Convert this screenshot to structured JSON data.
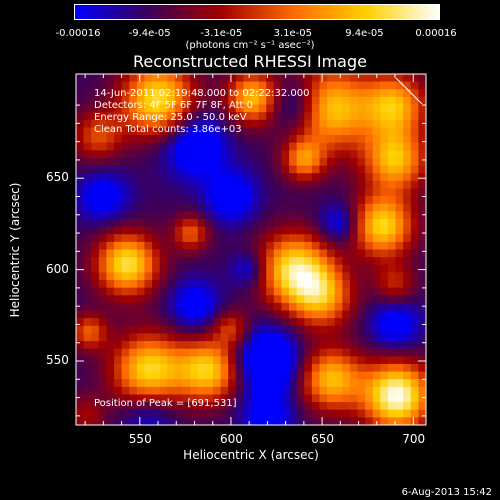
{
  "colorbar": {
    "ticks": [
      "-0.00016",
      "-9.4e-05",
      "-3.1e-05",
      "3.1e-05",
      "9.4e-05",
      "0.00016"
    ],
    "units": "(photons cm⁻² s⁻¹ asec⁻²)"
  },
  "chart_data": {
    "type": "heatmap",
    "title": "Reconstructed RHESSI Image",
    "xlabel": "Heliocentric X (arcsec)",
    "ylabel": "Heliocentric Y (arcsec)",
    "xlim": [
      515,
      707
    ],
    "ylim": [
      515,
      707
    ],
    "x_ticks": [
      550,
      600,
      650,
      700
    ],
    "y_ticks": [
      550,
      600,
      650
    ],
    "annotations": [
      "14-Jun-2011 02:19:48.000 to 02:22:32.000",
      "Detectors: 4F 5F 6F 7F 8F, Att 0",
      "Energy Range: 25.0 - 50.0 keV",
      "Clean    Total counts: 3.86e+03"
    ],
    "peak_text": "Position of Peak = [691,531]",
    "peak": [
      691,
      531
    ],
    "colormap": [
      "#0000ff",
      "#3a005a",
      "#a00000",
      "#ff6a00",
      "#ffd000",
      "#ffffff"
    ],
    "blobs": [
      {
        "x": 560,
        "y": 693,
        "amp": 1.0,
        "s": 14
      },
      {
        "x": 612,
        "y": 694,
        "amp": 0.85,
        "s": 10
      },
      {
        "x": 655,
        "y": 688,
        "amp": 0.9,
        "s": 16
      },
      {
        "x": 690,
        "y": 690,
        "amp": 0.8,
        "s": 12
      },
      {
        "x": 690,
        "y": 660,
        "amp": 0.85,
        "s": 12
      },
      {
        "x": 640,
        "y": 660,
        "amp": 0.65,
        "s": 8
      },
      {
        "x": 527,
        "y": 673,
        "amp": 0.5,
        "s": 10
      },
      {
        "x": 683,
        "y": 624,
        "amp": 0.95,
        "s": 12
      },
      {
        "x": 543,
        "y": 603,
        "amp": 1.0,
        "s": 12
      },
      {
        "x": 578,
        "y": 620,
        "amp": 0.55,
        "s": 7
      },
      {
        "x": 635,
        "y": 600,
        "amp": 1.0,
        "s": 14
      },
      {
        "x": 650,
        "y": 585,
        "amp": 0.7,
        "s": 12
      },
      {
        "x": 690,
        "y": 592,
        "amp": 0.4,
        "s": 8
      },
      {
        "x": 522,
        "y": 566,
        "amp": 0.55,
        "s": 7
      },
      {
        "x": 555,
        "y": 545,
        "amp": 0.95,
        "s": 14
      },
      {
        "x": 588,
        "y": 545,
        "amp": 0.9,
        "s": 12
      },
      {
        "x": 600,
        "y": 568,
        "amp": 0.45,
        "s": 7
      },
      {
        "x": 655,
        "y": 540,
        "amp": 0.85,
        "s": 12
      },
      {
        "x": 691,
        "y": 531,
        "amp": 1.2,
        "s": 13
      },
      {
        "x": 520,
        "y": 520,
        "amp": 0.3,
        "s": 8
      },
      {
        "x": 635,
        "y": 690,
        "amp": -0.45,
        "s": 10
      },
      {
        "x": 580,
        "y": 668,
        "amp": -0.55,
        "s": 12
      },
      {
        "x": 600,
        "y": 640,
        "amp": -0.45,
        "s": 10
      },
      {
        "x": 530,
        "y": 640,
        "amp": -0.4,
        "s": 10
      },
      {
        "x": 660,
        "y": 625,
        "amp": -0.4,
        "s": 8
      },
      {
        "x": 610,
        "y": 600,
        "amp": -0.35,
        "s": 7
      },
      {
        "x": 580,
        "y": 580,
        "amp": -0.4,
        "s": 10
      },
      {
        "x": 620,
        "y": 550,
        "amp": -0.7,
        "s": 12
      },
      {
        "x": 690,
        "y": 570,
        "amp": -0.4,
        "s": 10
      },
      {
        "x": 555,
        "y": 520,
        "amp": -0.3,
        "s": 10
      },
      {
        "x": 620,
        "y": 520,
        "amp": -0.4,
        "s": 10
      }
    ]
  },
  "footer": {
    "date": "6-Aug-2013 15:42"
  }
}
